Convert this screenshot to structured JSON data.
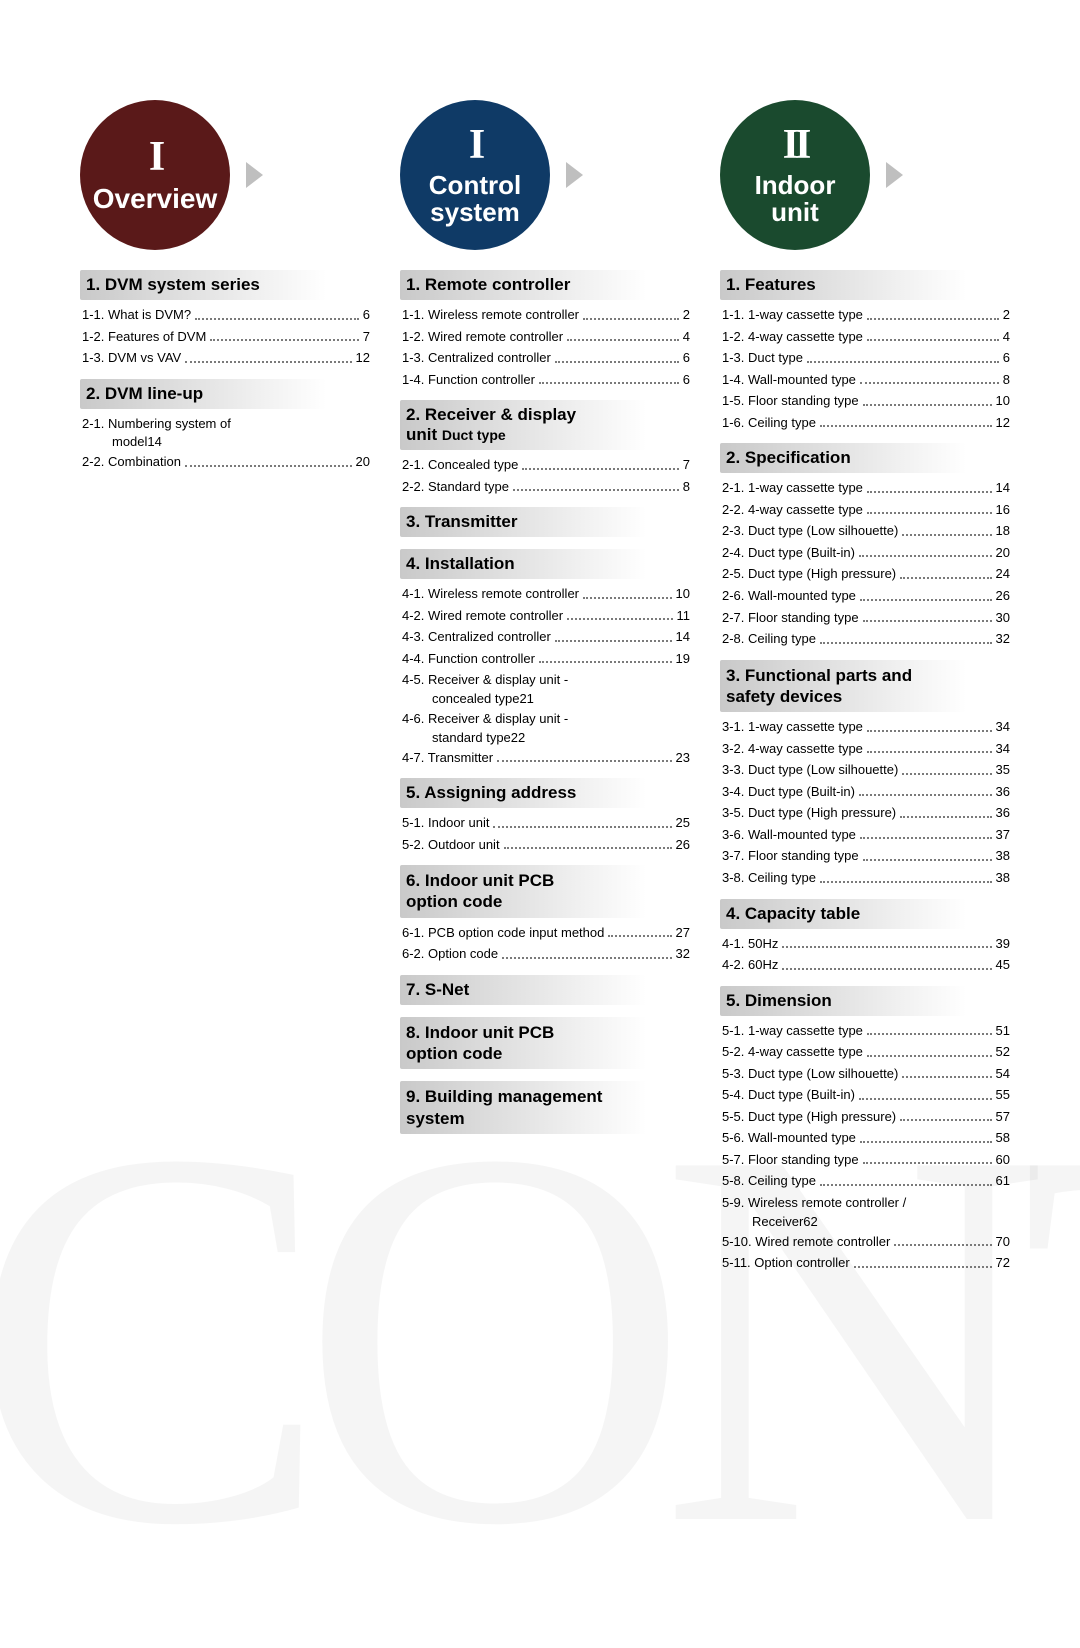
{
  "colors": {
    "circle1": "#5a1919",
    "circle2": "#0f3a66",
    "circle3": "#1a4a2e",
    "arrow": "#bfbfbf",
    "gradient_start": "#c9c9c9",
    "gradient_end": "#ffffff",
    "watermark": "rgba(0,0,0,0.04)",
    "dots": "#7a7a7a"
  },
  "watermark_text": "CONT",
  "columns": [
    {
      "roman": "I",
      "title": "Overview",
      "circle_color": "#5a1919",
      "sections": [
        {
          "title": "1. DVM system series",
          "items": [
            {
              "label": "1-1. What is DVM?",
              "page": "6"
            },
            {
              "label": "1-2. Features of DVM",
              "page": "7"
            },
            {
              "label": "1-3. DVM vs VAV",
              "page": "12"
            }
          ]
        },
        {
          "title": "2. DVM line-up",
          "items": [
            {
              "label": "2-1. Numbering system of",
              "sublabel": "model",
              "page": "14"
            },
            {
              "label": "2-2. Combination",
              "page": "20"
            }
          ]
        }
      ]
    },
    {
      "roman": "I",
      "title": "Control\nsystem",
      "circle_color": "#0f3a66",
      "sections": [
        {
          "title": "1. Remote controller",
          "items": [
            {
              "label": "1-1. Wireless remote controller",
              "page": "2"
            },
            {
              "label": "1-2. Wired remote controller",
              "page": "4"
            },
            {
              "label": "1-3. Centralized controller",
              "page": "6"
            },
            {
              "label": "1-4. Function controller",
              "page": "6"
            }
          ]
        },
        {
          "title": "2. Receiver & display",
          "subtitle": "unit Duct type",
          "items": [
            {
              "label": "2-1. Concealed type",
              "page": "7"
            },
            {
              "label": "2-2. Standard type",
              "page": "8"
            }
          ]
        },
        {
          "title": "3. Transmitter",
          "items": []
        },
        {
          "title": "4. Installation",
          "items": [
            {
              "label": "4-1. Wireless remote controller",
              "page": "10"
            },
            {
              "label": "4-2. Wired remote controller",
              "page": "11"
            },
            {
              "label": "4-3. Centralized controller",
              "page": "14"
            },
            {
              "label": "4-4. Function controller",
              "page": "19"
            },
            {
              "label": "4-5. Receiver & display unit -",
              "sublabel": "concealed type",
              "page": "21"
            },
            {
              "label": "4-6. Receiver & display unit -",
              "sublabel": "standard type",
              "page": "22"
            },
            {
              "label": "4-7. Transmitter",
              "page": "23"
            }
          ]
        },
        {
          "title": "5. Assigning address",
          "items": [
            {
              "label": "5-1. Indoor unit",
              "page": "25"
            },
            {
              "label": "5-2. Outdoor unit",
              "page": "26"
            }
          ]
        },
        {
          "title": "6. Indoor unit PCB\noption code",
          "multiline": true,
          "items": [
            {
              "label": "6-1. PCB option code input method",
              "page": "27"
            },
            {
              "label": "6-2. Option code",
              "page": "32"
            }
          ]
        },
        {
          "title": "7. S-Net",
          "items": []
        },
        {
          "title": "8. Indoor unit PCB\noption code",
          "multiline": true,
          "items": []
        },
        {
          "title": "9. Building management\nsystem",
          "multiline": true,
          "items": []
        }
      ]
    },
    {
      "roman": "II",
      "title": "Indoor\nunit",
      "circle_color": "#1a4a2e",
      "sections": [
        {
          "title": "1. Features",
          "items": [
            {
              "label": "1-1. 1-way cassette type",
              "page": "2"
            },
            {
              "label": "1-2. 4-way cassette type",
              "page": "4"
            },
            {
              "label": "1-3. Duct type",
              "page": "6"
            },
            {
              "label": "1-4. Wall-mounted type",
              "page": "8"
            },
            {
              "label": "1-5. Floor standing type",
              "page": "10"
            },
            {
              "label": "1-6. Ceiling type",
              "page": "12"
            }
          ]
        },
        {
          "title": "2. Specification",
          "items": [
            {
              "label": "2-1. 1-way cassette type",
              "page": "14"
            },
            {
              "label": "2-2. 4-way cassette type",
              "page": "16"
            },
            {
              "label": "2-3. Duct type (Low silhouette)",
              "page": "18"
            },
            {
              "label": "2-4. Duct type (Built-in)",
              "page": "20"
            },
            {
              "label": "2-5. Duct type (High pressure)",
              "page": "24"
            },
            {
              "label": "2-6. Wall-mounted type",
              "page": "26"
            },
            {
              "label": "2-7. Floor standing type",
              "page": "30"
            },
            {
              "label": "2-8. Ceiling type",
              "page": "32"
            }
          ]
        },
        {
          "title": "3. Functional parts and\nsafety devices",
          "multiline": true,
          "items": [
            {
              "label": "3-1. 1-way cassette type",
              "page": "34"
            },
            {
              "label": "3-2. 4-way cassette type",
              "page": "34"
            },
            {
              "label": "3-3. Duct type (Low silhouette)",
              "page": "35"
            },
            {
              "label": "3-4. Duct type (Built-in)",
              "page": "36"
            },
            {
              "label": "3-5. Duct type (High pressure)",
              "page": "36"
            },
            {
              "label": "3-6. Wall-mounted type",
              "page": "37"
            },
            {
              "label": "3-7. Floor standing type",
              "page": "38"
            },
            {
              "label": "3-8. Ceiling type",
              "page": "38"
            }
          ]
        },
        {
          "title": "4. Capacity table",
          "items": [
            {
              "label": "4-1. 50Hz",
              "page": "39"
            },
            {
              "label": "4-2. 60Hz",
              "page": "45"
            }
          ]
        },
        {
          "title": "5. Dimension",
          "items": [
            {
              "label": "5-1. 1-way cassette type",
              "page": "51"
            },
            {
              "label": "5-2. 4-way cassette type",
              "page": "52"
            },
            {
              "label": "5-3. Duct type (Low silhouette)",
              "page": "54"
            },
            {
              "label": "5-4. Duct type (Built-in)",
              "page": "55"
            },
            {
              "label": "5-5. Duct type (High pressure)",
              "page": "57"
            },
            {
              "label": "5-6. Wall-mounted type",
              "page": "58"
            },
            {
              "label": "5-7. Floor standing type",
              "page": "60"
            },
            {
              "label": "5-8. Ceiling type",
              "page": "61"
            },
            {
              "label": "5-9. Wireless remote controller /",
              "sublabel": "Receiver",
              "page": "62"
            },
            {
              "label": "5-10. Wired remote controller",
              "page": "70"
            },
            {
              "label": "5-11. Option controller",
              "page": "72"
            }
          ]
        }
      ]
    }
  ]
}
